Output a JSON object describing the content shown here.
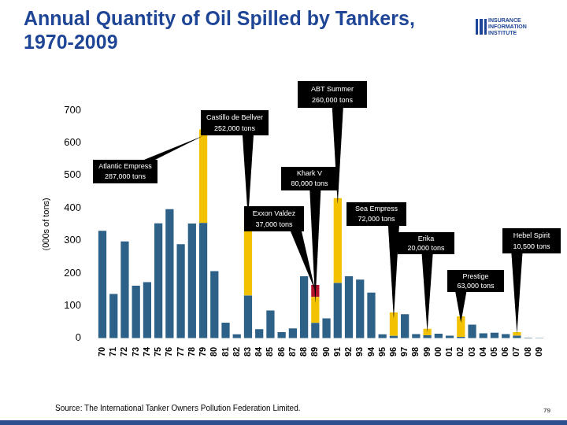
{
  "chart_data": {
    "type": "bar",
    "title": "Annual Quantity of Oil Spilled by Tankers, 1970-2009",
    "ylabel": "(000s of tons)",
    "source": "Source: The International Tanker Owners Pollution Federation Limited.",
    "page": "79",
    "logo": [
      "INSURANCE",
      "INFORMATION",
      "INSTITUTE"
    ],
    "categories": [
      "70",
      "71",
      "72",
      "73",
      "74",
      "75",
      "76",
      "77",
      "78",
      "79",
      "80",
      "81",
      "82",
      "83",
      "84",
      "85",
      "86",
      "87",
      "88",
      "89",
      "90",
      "91",
      "92",
      "93",
      "94",
      "95",
      "96",
      "97",
      "98",
      "99",
      "00",
      "01",
      "02",
      "03",
      "04",
      "05",
      "06",
      "07",
      "08",
      "09"
    ],
    "series": [
      {
        "color": "#2d6187",
        "values": [
          330,
          136,
          297,
          161,
          172,
          353,
          396,
          289,
          352,
          354,
          206,
          48,
          12,
          131,
          28,
          85,
          19,
          30,
          190,
          47,
          61,
          170,
          190,
          180,
          140,
          12,
          7,
          74,
          13,
          9,
          14,
          8,
          4,
          42,
          15,
          17,
          13,
          8,
          2,
          1
        ]
      },
      {
        "color": "#f2c100",
        "values": [
          null,
          null,
          null,
          null,
          null,
          null,
          null,
          null,
          null,
          287,
          null,
          null,
          null,
          252,
          null,
          null,
          null,
          null,
          null,
          80,
          null,
          260,
          null,
          null,
          null,
          null,
          72,
          null,
          null,
          20,
          null,
          null,
          63,
          null,
          null,
          null,
          null,
          10.5,
          null,
          null
        ]
      },
      {
        "color": "#b3132b",
        "values": [
          null,
          null,
          null,
          null,
          null,
          null,
          null,
          null,
          null,
          null,
          null,
          null,
          null,
          null,
          null,
          null,
          null,
          null,
          null,
          37,
          null,
          null,
          null,
          null,
          null,
          null,
          null,
          null,
          null,
          null,
          null,
          null,
          null,
          null,
          null,
          null,
          null,
          null,
          null,
          null
        ]
      }
    ],
    "annotations": [
      {
        "category": "79",
        "text": "Atlantic Empress",
        "detail": "287,000 tons"
      },
      {
        "category": "83",
        "text": "Castillo de Bellver",
        "detail": "252,000 tons"
      },
      {
        "category": "89",
        "text": "Khark V",
        "detail": "80,000 tons"
      },
      {
        "category": "89",
        "text": "Exxon Valdez",
        "detail": "37,000 tons"
      },
      {
        "category": "91",
        "text": "ABT Summer",
        "detail": "260,000 tons"
      },
      {
        "category": "96",
        "text": "Sea Empress",
        "detail": "72,000 tons"
      },
      {
        "category": "99",
        "text": "Erika",
        "detail": "20,000 tons"
      },
      {
        "category": "02",
        "text": "Prestige",
        "detail": "63,000 tons"
      },
      {
        "category": "07",
        "text": "Hebel Spirit",
        "detail": "10,500 tons"
      }
    ],
    "stacked": true,
    "ylim": [
      0,
      700
    ],
    "yticks": [
      0,
      100,
      200,
      300,
      400,
      500,
      600,
      700
    ],
    "grid": false
  }
}
